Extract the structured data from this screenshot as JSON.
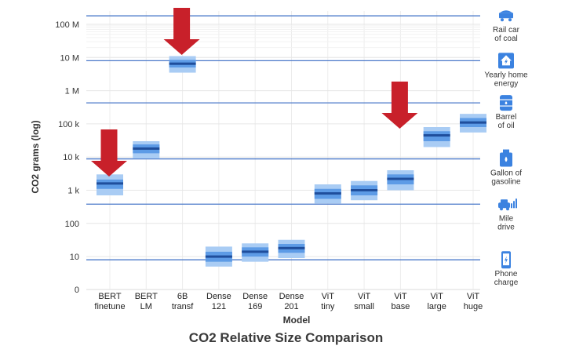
{
  "chart_data": {
    "type": "box",
    "title": "CO2 Relative Size Comparison",
    "xlabel": "Model",
    "ylabel": "CO2 grams (log)",
    "y_scale": "log",
    "y_ticks": [
      "0",
      "10",
      "100",
      "1 k",
      "10 k",
      "100 k",
      "1 M",
      "10 M",
      "100 M"
    ],
    "categories": [
      [
        "BERT",
        "finetune"
      ],
      [
        "BERT",
        "LM"
      ],
      [
        "6B",
        "transf"
      ],
      [
        "Dense",
        "121"
      ],
      [
        "Dense",
        "169"
      ],
      [
        "Dense",
        "201"
      ],
      [
        "ViT",
        "tiny"
      ],
      [
        "ViT",
        "small"
      ],
      [
        "ViT",
        "base"
      ],
      [
        "ViT",
        "large"
      ],
      [
        "ViT",
        "huge"
      ]
    ],
    "series": [
      {
        "boxes": [
          {
            "low": 700,
            "q1": 1100,
            "median": 1600,
            "q3": 2100,
            "high": 3000
          },
          {
            "low": 9000,
            "q1": 13000,
            "median": 18000,
            "q3": 24000,
            "high": 30000
          },
          {
            "low": 3500000,
            "q1": 5000000,
            "median": 6500000,
            "q3": 8500000,
            "high": 11000000
          },
          {
            "low": 5,
            "q1": 7,
            "median": 10,
            "q3": 14,
            "high": 20
          },
          {
            "low": 7,
            "q1": 10,
            "median": 14,
            "q3": 19,
            "high": 25
          },
          {
            "low": 9,
            "q1": 13,
            "median": 18,
            "q3": 24,
            "high": 32
          },
          {
            "low": 400,
            "q1": 550,
            "median": 800,
            "q3": 1100,
            "high": 1500
          },
          {
            "low": 500,
            "q1": 700,
            "median": 1000,
            "q3": 1400,
            "high": 1900
          },
          {
            "low": 1000,
            "q1": 1500,
            "median": 2200,
            "q3": 3000,
            "high": 4000
          },
          {
            "low": 20000,
            "q1": 30000,
            "median": 45000,
            "q3": 60000,
            "high": 80000
          },
          {
            "low": 55000,
            "q1": 80000,
            "median": 110000,
            "q3": 150000,
            "high": 200000
          }
        ]
      }
    ],
    "reference_lines": [
      {
        "label": [
          "Rail car",
          "of coal"
        ],
        "value": 180000000,
        "icon": "rail-car-icon"
      },
      {
        "label": [
          "Yearly home",
          "energy"
        ],
        "value": 8000000,
        "icon": "home-energy-icon"
      },
      {
        "label": [
          "Barrel",
          "of oil"
        ],
        "value": 430000,
        "icon": "oil-barrel-icon"
      },
      {
        "label": [
          "Gallon of",
          "gasoline"
        ],
        "value": 8800,
        "icon": "gas-can-icon"
      },
      {
        "label": [
          "Mile",
          "drive"
        ],
        "value": 380,
        "icon": "car-icon"
      },
      {
        "label": [
          "Phone",
          "charge"
        ],
        "value": 8,
        "icon": "phone-icon"
      }
    ],
    "annotations": [
      {
        "type": "arrow-down",
        "category_index": 0,
        "color": "#c8202a"
      },
      {
        "type": "arrow-down",
        "category_index": 2,
        "color": "#c8202a"
      },
      {
        "type": "arrow-down",
        "category_index": 8,
        "color": "#c8202a"
      }
    ],
    "colors": {
      "box_outer": "#a9ccf4",
      "box_inner": "#5d9be6",
      "median": "#1f4e9c",
      "reference_line": "#4a78c9",
      "icon": "#3b82e0",
      "arrow": "#c8202a"
    },
    "grid": true
  }
}
